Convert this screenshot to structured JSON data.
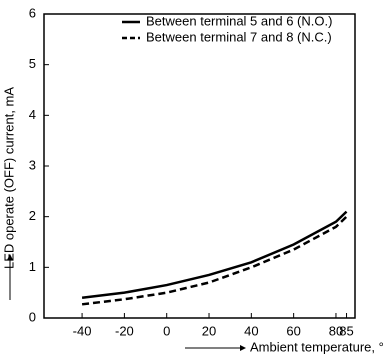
{
  "chart_data": {
    "type": "line",
    "x_label": "Ambient temperature, °C",
    "y_label": "LED operate (OFF) current, mA",
    "x": [
      -40,
      -20,
      0,
      20,
      40,
      60,
      80,
      85
    ],
    "series": [
      {
        "name": "Between terminal 5 and 6 (N.O.)",
        "color": "#000000",
        "linestyle": "solid",
        "values": [
          0.4,
          0.5,
          0.65,
          0.85,
          1.1,
          1.45,
          1.9,
          2.1
        ]
      },
      {
        "name": "Between terminal 7 and 8 (N.C.)",
        "color": "#000000",
        "linestyle": "dashed",
        "values": [
          0.27,
          0.37,
          0.5,
          0.7,
          1.0,
          1.35,
          1.8,
          2.0
        ]
      }
    ],
    "xlim": [
      -58,
      89
    ],
    "xticks": [
      -40,
      -20,
      0,
      20,
      40,
      60,
      80,
      85
    ],
    "ylim": [
      0,
      6
    ],
    "yticks": [
      0,
      1,
      2,
      3,
      4,
      5,
      6
    ],
    "grid": false,
    "legend": "upper right"
  }
}
